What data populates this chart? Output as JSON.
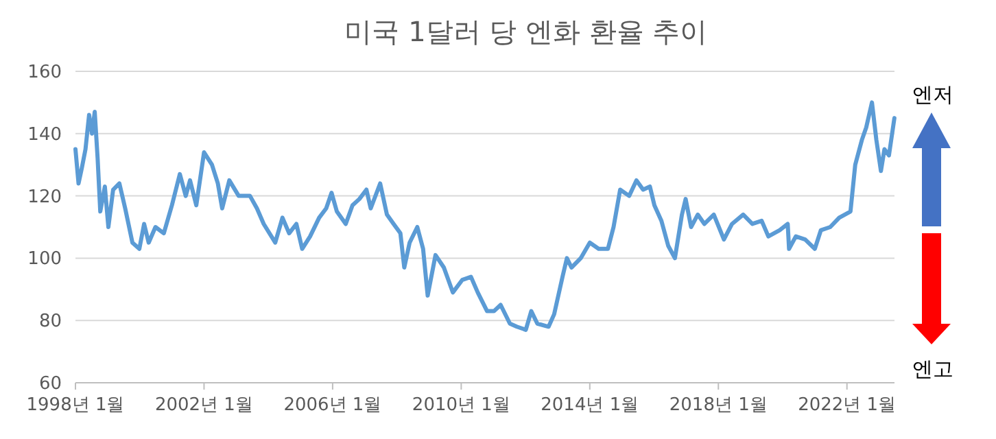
{
  "chart_data": {
    "type": "line",
    "title": "미국 1달러 당 엔화 환율 추이",
    "annotations": [
      "엔저",
      "엔고"
    ],
    "xlim": [
      "1998-01-01",
      "2023-06-25"
    ],
    "xticks": [
      {
        "value": "1998-01-01",
        "label": "1998년 1월"
      },
      {
        "value": "2002-01-01",
        "label": "2002년 1월"
      },
      {
        "value": "2006-01-01",
        "label": "2006년 1월"
      },
      {
        "value": "2010-01-01",
        "label": "2010년 1월"
      },
      {
        "value": "2014-01-01",
        "label": "2014년 1월"
      },
      {
        "value": "2018-01-01",
        "label": "2018년 1월"
      },
      {
        "value": "2022-01-01",
        "label": "2022년 1월"
      }
    ],
    "ylim": [
      60,
      160
    ],
    "yticks": [
      60,
      80,
      100,
      120,
      140,
      160
    ],
    "grid": "y",
    "marker": "none",
    "line_style": "solid",
    "x": [
      "1998-01-01",
      "1998-02-05",
      "1998-03-15",
      "1998-04-25",
      "1998-06-05",
      "1998-07-08",
      "1998-08-08",
      "1998-09-10",
      "1998-10-10",
      "1998-12-01",
      "1999-01-10",
      "1999-03-05",
      "1999-05-15",
      "1999-07-20",
      "1999-10-10",
      "1999-12-28",
      "2000-02-20",
      "2000-04-12",
      "2000-06-28",
      "2000-10-01",
      "2001-01-01",
      "2001-04-01",
      "2001-06-07",
      "2001-07-26",
      "2001-10-05",
      "2002-01-01",
      "2002-04-01",
      "2002-06-07",
      "2002-07-26",
      "2002-10-15",
      "2003-01-30",
      "2003-06-07",
      "2003-08-25",
      "2003-11-10",
      "2004-03-20",
      "2004-06-10",
      "2004-08-25",
      "2004-11-15",
      "2005-01-20",
      "2005-04-20",
      "2005-08-01",
      "2005-10-20",
      "2005-12-20",
      "2006-02-18",
      "2006-05-30",
      "2006-08-15",
      "2006-11-01",
      "2007-01-20",
      "2007-03-10",
      "2007-06-25",
      "2007-09-10",
      "2007-11-25",
      "2008-02-10",
      "2008-03-25",
      "2008-05-25",
      "2008-08-20",
      "2008-10-25",
      "2008-12-16",
      "2009-03-15",
      "2009-06-18",
      "2009-09-28",
      "2010-01-12",
      "2010-04-22",
      "2010-07-08",
      "2010-10-22",
      "2011-01-08",
      "2011-03-25",
      "2011-07-08",
      "2011-09-25",
      "2012-01-05",
      "2012-03-07",
      "2012-05-15",
      "2012-09-20",
      "2012-11-22",
      "2013-02-25",
      "2013-04-16",
      "2013-06-07",
      "2013-09-20",
      "2014-01-01",
      "2014-04-12",
      "2014-07-26",
      "2014-09-28",
      "2014-12-12",
      "2015-03-25",
      "2015-06-15",
      "2015-08-30",
      "2015-11-15",
      "2016-01-05",
      "2016-03-25",
      "2016-06-10",
      "2016-08-25",
      "2016-11-13",
      "2016-12-25",
      "2017-02-25",
      "2017-05-12",
      "2017-07-26",
      "2017-11-10",
      "2018-03-05",
      "2018-06-05",
      "2018-10-10",
      "2019-01-22",
      "2019-05-08",
      "2019-07-23",
      "2019-11-28",
      "2020-02-28",
      "2020-03-14",
      "2020-05-30",
      "2020-09-13",
      "2021-01-01",
      "2021-03-11",
      "2021-06-25",
      "2021-10-05",
      "2022-02-10",
      "2022-04-05",
      "2022-06-20",
      "2022-08-08",
      "2022-10-12",
      "2022-12-01",
      "2023-01-22",
      "2023-03-03",
      "2023-04-23",
      "2023-06-24"
    ],
    "series": [
      {
        "color": "#5b9bd5",
        "values": [
          135,
          124,
          129,
          135,
          146,
          140,
          147,
          132,
          115,
          123,
          110,
          122,
          124,
          116,
          105,
          103,
          111,
          105,
          110,
          108,
          117,
          127,
          120,
          125,
          117,
          134,
          130,
          124,
          116,
          125,
          120,
          120,
          116,
          111,
          105,
          113,
          108,
          111,
          103,
          107,
          113,
          116,
          121,
          115,
          111,
          117,
          119,
          122,
          116,
          124,
          114,
          111,
          108,
          97,
          105,
          110,
          103,
          88,
          101,
          97,
          89,
          93,
          94,
          89,
          83,
          83,
          85,
          79,
          78,
          77,
          83,
          79,
          78,
          82,
          94,
          100,
          97,
          100,
          105,
          103,
          103,
          110,
          122,
          120,
          125,
          122,
          123,
          117,
          112,
          104,
          100,
          114,
          119,
          110,
          114,
          111,
          114,
          106,
          111,
          114,
          111,
          112,
          107,
          109,
          111,
          103,
          107,
          106,
          103,
          109,
          110,
          113,
          115,
          130,
          138,
          142,
          150,
          138,
          128,
          135,
          133,
          145
        ]
      }
    ]
  }
}
